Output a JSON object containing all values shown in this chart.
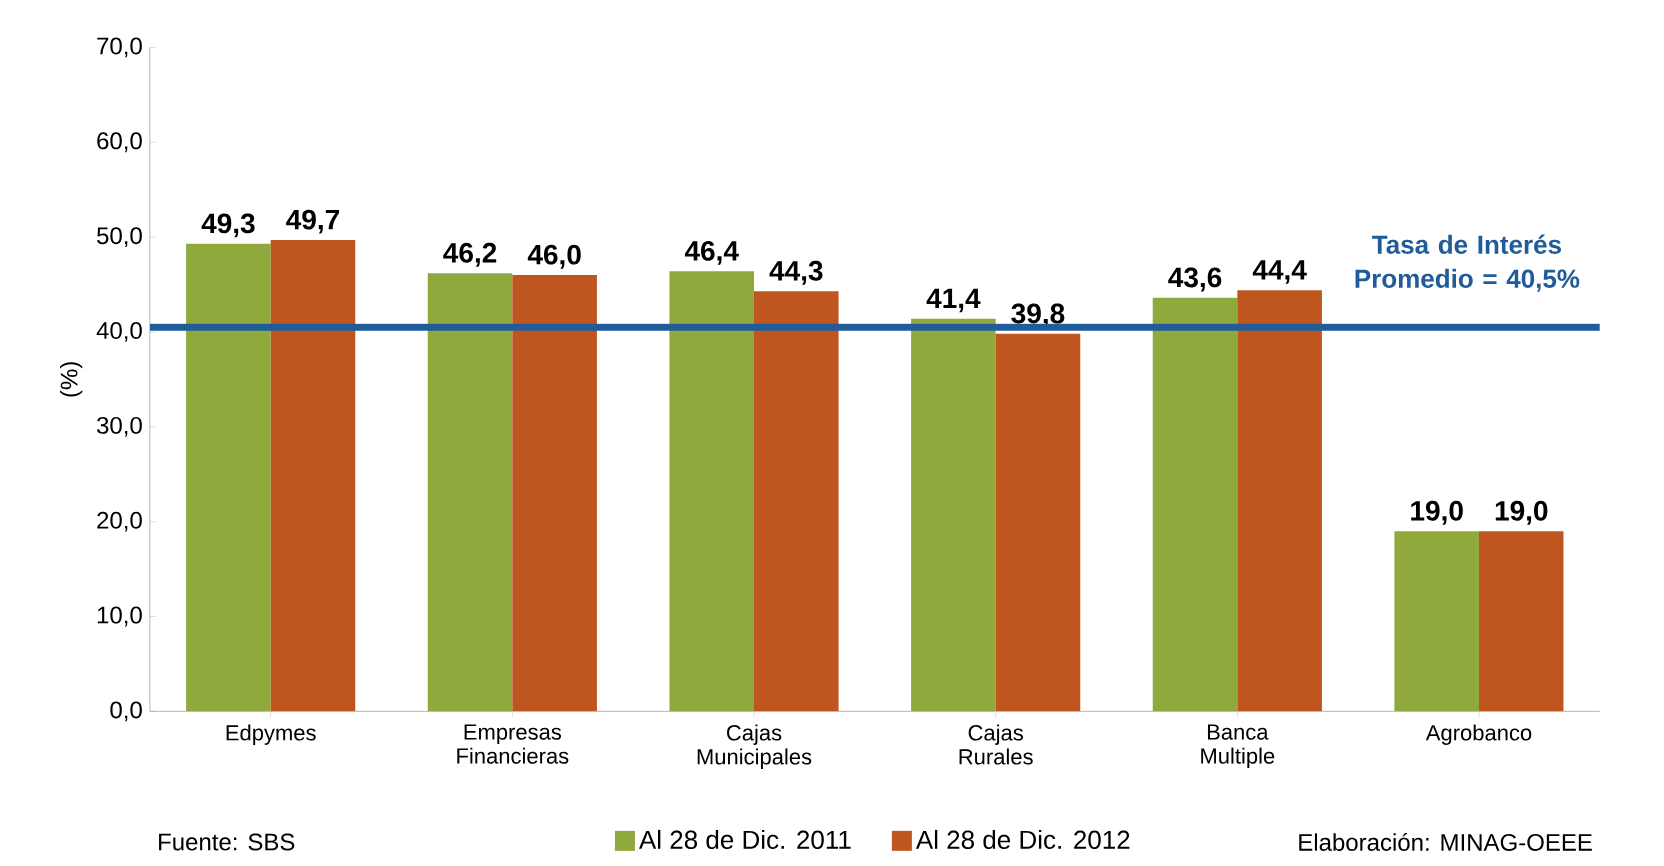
{
  "chart_data": {
    "type": "bar",
    "categories": [
      "Edpymes",
      "Empresas Financieras",
      "Cajas Municipales",
      "Cajas Rurales",
      "Banca Multiple",
      "Agrobanco"
    ],
    "series": [
      {
        "name": "Al 28 de Dic. 2011",
        "color": "#8fa93c",
        "values": [
          49.3,
          46.2,
          46.4,
          41.4,
          43.6,
          19.0
        ],
        "value_labels": [
          "49,3",
          "46,2",
          "46,4",
          "41,4",
          "43,6",
          "19,0"
        ]
      },
      {
        "name": "Al 28 de Dic. 2012",
        "color": "#bf5620",
        "values": [
          49.7,
          46.0,
          44.3,
          39.8,
          44.4,
          19.0
        ],
        "value_labels": [
          "49,7",
          "46,0",
          "44,3",
          "39,8",
          "44,4",
          "19,0"
        ]
      }
    ],
    "ylabel": "(%)",
    "ylim": [
      0,
      70
    ],
    "yticks": [
      {
        "value": 0,
        "label": "0,0"
      },
      {
        "value": 10,
        "label": "10,0"
      },
      {
        "value": 20,
        "label": "20,0"
      },
      {
        "value": 30,
        "label": "30,0"
      },
      {
        "value": 40,
        "label": "40,0"
      },
      {
        "value": 50,
        "label": "50,0"
      },
      {
        "value": 60,
        "label": "60,0"
      },
      {
        "value": 70,
        "label": "70,0"
      }
    ],
    "ref_lines": [
      {
        "axis": "y",
        "value": 40.5,
        "label": "Tasa de Interés Promedio = 40,5%",
        "color": "#1f5c99"
      }
    ],
    "legend": "bottom",
    "annotations": [
      "Fuente: SBS",
      "Elaboración: MINAG-OEEE"
    ]
  }
}
